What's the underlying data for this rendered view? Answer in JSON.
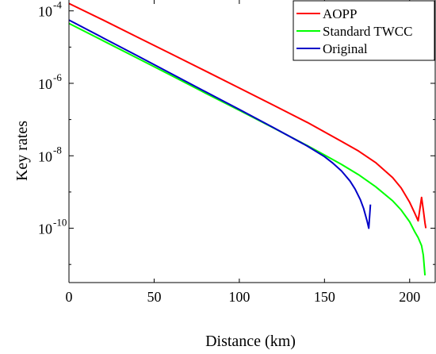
{
  "chart_data": {
    "type": "line",
    "xlabel": "Distance (km)",
    "ylabel": "Key rates",
    "xlim": [
      0,
      215
    ],
    "ylim_log10": [
      -11.5,
      -3.7
    ],
    "yscale": "log",
    "grid": false,
    "legend_position": "top-right",
    "x_ticks": [
      {
        "value": 0,
        "label": "0"
      },
      {
        "value": 50,
        "label": "50"
      },
      {
        "value": 100,
        "label": "100"
      },
      {
        "value": 150,
        "label": "150"
      },
      {
        "value": 200,
        "label": "200"
      }
    ],
    "y_ticks": [
      {
        "value": 0.0001,
        "base": "10",
        "exp": "-4"
      },
      {
        "value": 1e-06,
        "base": "10",
        "exp": "-6"
      },
      {
        "value": 1e-08,
        "base": "10",
        "exp": "-8"
      },
      {
        "value": 1e-10,
        "base": "10",
        "exp": "-10"
      }
    ],
    "series": [
      {
        "name": "AOPP",
        "color": "#ff0000",
        "x": [
          0,
          20,
          40,
          60,
          80,
          100,
          120,
          140,
          160,
          170,
          180,
          190,
          195,
          200,
          203,
          205,
          207,
          208,
          209,
          209.5
        ],
        "y": [
          0.00016,
          5.6e-05,
          1.9e-05,
          6.5e-06,
          2.2e-06,
          7.4e-07,
          2.5e-07,
          8.3e-08,
          2.5e-08,
          1.35e-08,
          6.5e-09,
          2.5e-09,
          1.3e-09,
          5.2e-10,
          2.6e-10,
          1.6e-10,
          7.1e-10,
          3.2e-10,
          1.4e-10,
          1e-10
        ]
      },
      {
        "name": "Standard TWCC",
        "color": "#00ff00",
        "x": [
          0,
          20,
          40,
          60,
          80,
          100,
          120,
          140,
          150,
          160,
          170,
          180,
          190,
          195,
          200,
          203,
          205,
          207,
          208,
          209
        ],
        "y": [
          4.5e-05,
          1.5e-05,
          5e-06,
          1.65e-06,
          5.4e-07,
          1.8e-07,
          5.9e-08,
          1.9e-08,
          1.05e-08,
          5.8e-09,
          3e-09,
          1.4e-09,
          5.7e-10,
          3.2e-10,
          1.5e-10,
          8e-11,
          5.5e-11,
          3.3e-11,
          1.8e-11,
          5e-12
        ]
      },
      {
        "name": "Original",
        "color": "#0000c8",
        "x": [
          0,
          20,
          40,
          60,
          80,
          100,
          120,
          140,
          150,
          155,
          160,
          165,
          168,
          171,
          173,
          175,
          176,
          177
        ],
        "y": [
          5.6e-05,
          1.8e-05,
          5.8e-06,
          1.85e-06,
          5.9e-07,
          1.9e-07,
          6e-08,
          1.85e-08,
          9.5e-09,
          6.2e-09,
          3.8e-09,
          2e-09,
          1.2e-09,
          6.2e-10,
          3.5e-10,
          1.6e-10,
          1e-10,
          4.5e-10
        ]
      }
    ]
  }
}
